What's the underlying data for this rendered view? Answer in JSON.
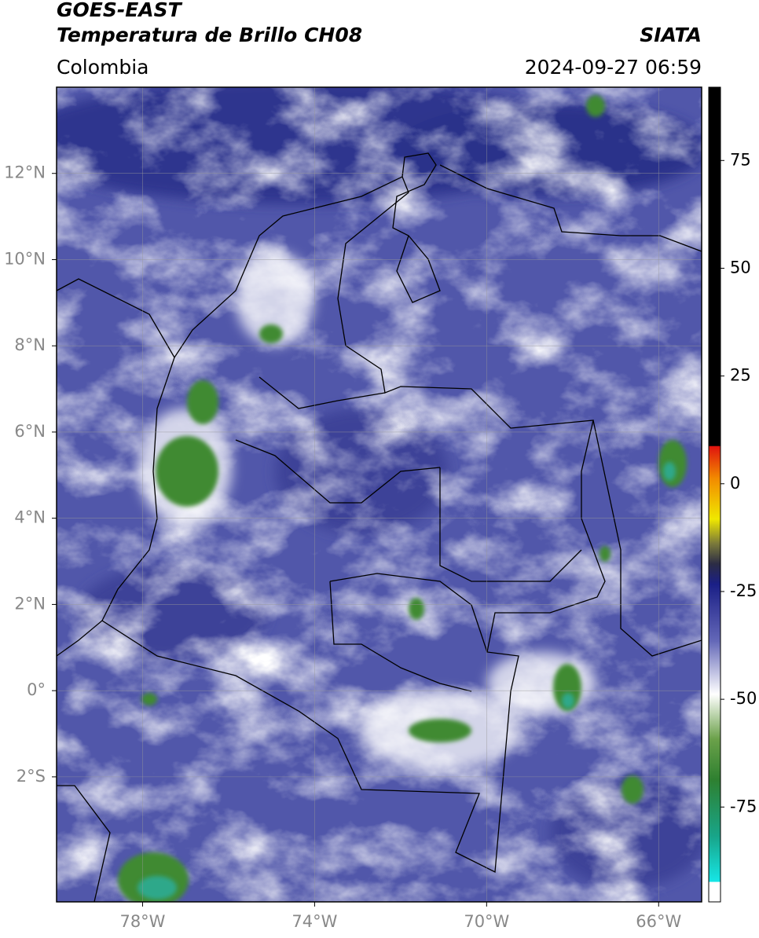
{
  "header": {
    "satellite": "GOES-EAST",
    "product": "Temperatura de Brillo CH08",
    "agency": "SIATA",
    "region": "Colombia",
    "datetime": "2024-09-27 06:59"
  },
  "map": {
    "xlim": [
      -80,
      -65
    ],
    "ylim": [
      -4.9,
      14
    ],
    "xticks": [
      {
        "value": -78,
        "label": "78°W"
      },
      {
        "value": -74,
        "label": "74°W"
      },
      {
        "value": -70,
        "label": "70°W"
      },
      {
        "value": -66,
        "label": "66°W"
      }
    ],
    "yticks": [
      {
        "value": 12,
        "label": "12°N"
      },
      {
        "value": 10,
        "label": "10°N"
      },
      {
        "value": 8,
        "label": "8°N"
      },
      {
        "value": 6,
        "label": "6°N"
      },
      {
        "value": 4,
        "label": "4°N"
      },
      {
        "value": 2,
        "label": "2°N"
      },
      {
        "value": 0,
        "label": "0°"
      },
      {
        "value": -2,
        "label": "2°S"
      }
    ],
    "grid": true
  },
  "colorbar": {
    "lim": [
      -97,
      92
    ],
    "ticks": [
      75,
      50,
      25,
      0,
      -25,
      -50,
      -75
    ]
  }
}
